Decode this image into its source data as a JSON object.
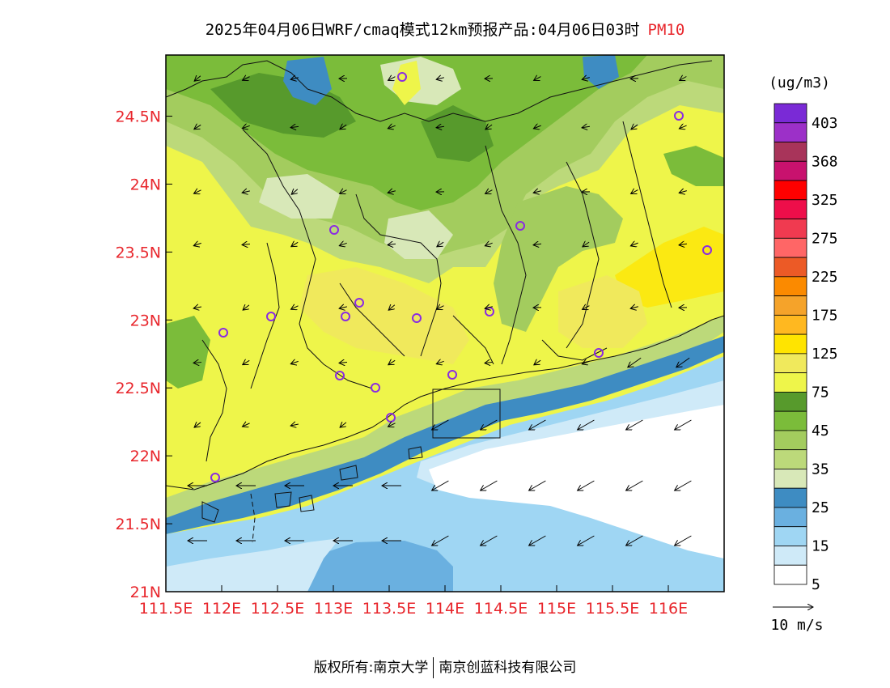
{
  "title": {
    "main": "2025年04月06日WRF/cmaq模式12km预报产品:04月06日03时",
    "variable": "PM10"
  },
  "map": {
    "lat_labels": [
      "24.5N",
      "24N",
      "23.5N",
      "23N",
      "22.5N",
      "22N",
      "21.5N",
      "21N"
    ],
    "lon_labels": [
      "111.5E",
      "112E",
      "112.5E",
      "113E",
      "113.5E",
      "114E",
      "114.5E",
      "115E",
      "115.5E",
      "116E"
    ],
    "lat_range": [
      21,
      24.95
    ],
    "lon_range": [
      111.5,
      116.5
    ]
  },
  "colorbar": {
    "unit": "(ug/m3)",
    "levels": [
      "403",
      "368",
      "325",
      "275",
      "225",
      "175",
      "125",
      "75",
      "45",
      "35",
      "25",
      "15",
      "5"
    ],
    "colors_top_to_bottom": [
      "#7a2ad6",
      "#9c30c8",
      "#a8345a",
      "#c8126e",
      "#ff0000",
      "#ee0e4a",
      "#f03a50",
      "#ff6666",
      "#ec5a26",
      "#fb8a00",
      "#f5a32a",
      "#ffb820",
      "#ffe400",
      "#f0e95c",
      "#eef54a",
      "#579a2c",
      "#7bbc3a",
      "#a3cc5e",
      "#bcd97a",
      "#d8e8b8",
      "#3e8cc2",
      "#6ab0e0",
      "#9fd6f3",
      "#cfeaf8",
      "#ffffff"
    ]
  },
  "wind_legend": {
    "label": "10 m/s"
  },
  "credits": {
    "left": "版权所有:南京大学",
    "right": "南京创蓝科技有限公司"
  }
}
